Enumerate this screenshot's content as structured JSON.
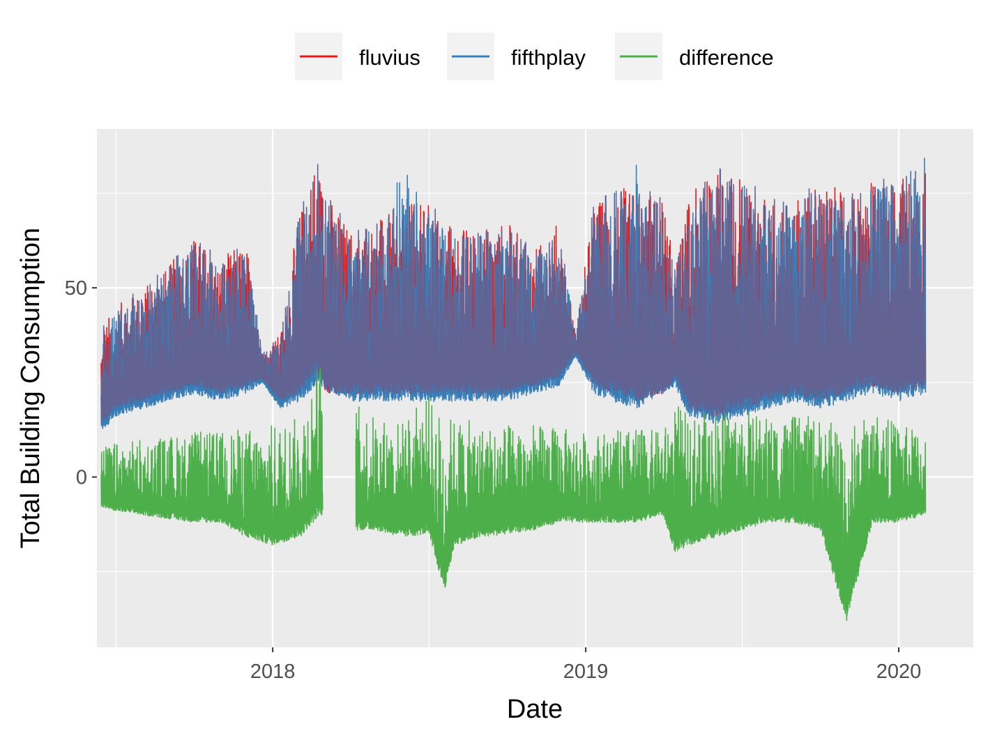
{
  "chart_data": {
    "type": "line",
    "xlabel": "Date",
    "ylabel": "Total Building Consumption",
    "x_tick_labels": [
      "2018",
      "2019",
      "2020"
    ],
    "x_ticks": [
      "2018-01-01",
      "2019-01-01",
      "2020-01-01"
    ],
    "y_tick_labels": [
      "0",
      "50"
    ],
    "y_ticks": [
      0,
      50
    ],
    "xlim": [
      "2017-06-10",
      "2020-03-28"
    ],
    "ylim": [
      -45,
      92
    ],
    "grid": true,
    "legend_position": "top",
    "colors": {
      "fluvius": "#e41a1c",
      "fifthplay": "#377eb8",
      "difference": "#4daf4a",
      "overlap": "#626393",
      "panel": "#ebebeb",
      "grid": "#ffffff"
    },
    "series": [
      {
        "name": "fluvius",
        "color": "#e41a1c",
        "x": [
          "2017-06-15",
          "2017-07-01",
          "2017-08-01",
          "2017-09-01",
          "2017-10-01",
          "2017-11-01",
          "2017-12-01",
          "2017-12-20",
          "2018-01-10",
          "2018-02-01",
          "2018-02-20",
          "2018-03-05",
          "2018-03-20",
          "2018-04-05",
          "2018-05-01",
          "2018-06-01",
          "2018-07-01",
          "2018-08-01",
          "2018-09-01",
          "2018-10-01",
          "2018-11-01",
          "2018-12-01",
          "2018-12-20",
          "2019-01-10",
          "2019-02-01",
          "2019-03-01",
          "2019-04-01",
          "2019-04-15",
          "2019-05-01",
          "2019-06-01",
          "2019-07-01",
          "2019-08-01",
          "2019-09-01",
          "2019-10-01",
          "2019-11-01",
          "2019-12-01",
          "2020-01-01",
          "2020-02-01"
        ],
        "high": [
          40,
          45,
          50,
          56,
          64,
          58,
          63,
          33,
          38,
          70,
          86,
          76,
          70,
          66,
          68,
          72,
          73,
          67,
          66,
          68,
          60,
          68,
          38,
          72,
          77,
          76,
          75,
          55,
          74,
          82,
          80,
          74,
          72,
          80,
          74,
          78,
          80,
          82
        ],
        "low": [
          14,
          18,
          20,
          22,
          24,
          22,
          24,
          26,
          20,
          22,
          28,
          22,
          22,
          22,
          22,
          22,
          22,
          22,
          22,
          22,
          24,
          26,
          33,
          24,
          22,
          20,
          22,
          26,
          18,
          16,
          18,
          20,
          22,
          20,
          22,
          24,
          22,
          24
        ]
      },
      {
        "name": "fifthplay",
        "color": "#377eb8",
        "x": [
          "2017-06-15",
          "2017-07-01",
          "2017-08-01",
          "2017-09-01",
          "2017-10-01",
          "2017-11-01",
          "2017-12-01",
          "2017-12-20",
          "2018-01-10",
          "2018-02-01",
          "2018-02-20",
          "2018-04-05",
          "2018-05-01",
          "2018-06-01",
          "2018-07-01",
          "2018-08-01",
          "2018-09-01",
          "2018-10-01",
          "2018-11-01",
          "2018-12-01",
          "2018-12-20",
          "2019-01-10",
          "2019-02-01",
          "2019-03-01",
          "2019-04-15",
          "2019-05-01",
          "2019-06-01",
          "2019-07-01",
          "2019-08-01",
          "2019-09-01",
          "2019-10-01",
          "2019-11-01",
          "2019-12-01",
          "2020-01-01",
          "2020-02-01"
        ],
        "high": [
          38,
          43,
          48,
          54,
          62,
          56,
          60,
          32,
          36,
          68,
          72,
          64,
          66,
          84,
          70,
          64,
          64,
          66,
          58,
          66,
          37,
          70,
          75,
          84,
          53,
          72,
          80,
          78,
          72,
          70,
          78,
          72,
          76,
          78,
          86
        ],
        "low": [
          12,
          16,
          18,
          20,
          22,
          20,
          22,
          25,
          18,
          20,
          24,
          20,
          20,
          20,
          20,
          20,
          20,
          20,
          22,
          24,
          32,
          22,
          20,
          18,
          24,
          16,
          14,
          16,
          18,
          20,
          18,
          20,
          22,
          20,
          22
        ]
      },
      {
        "name": "difference",
        "color": "#4daf4a",
        "x": [
          "2017-06-15",
          "2017-07-01",
          "2017-08-01",
          "2017-09-01",
          "2017-10-01",
          "2017-11-01",
          "2017-12-01",
          "2018-01-01",
          "2018-02-01",
          "2018-02-25",
          "2018-04-05",
          "2018-05-01",
          "2018-06-01",
          "2018-07-01",
          "2018-07-20",
          "2018-08-01",
          "2018-09-01",
          "2018-10-01",
          "2018-11-01",
          "2018-12-01",
          "2019-01-01",
          "2019-02-01",
          "2019-03-01",
          "2019-04-01",
          "2019-04-15",
          "2019-05-01",
          "2019-06-01",
          "2019-07-01",
          "2019-08-01",
          "2019-09-01",
          "2019-10-01",
          "2019-11-01",
          "2019-12-01",
          "2020-01-01",
          "2020-02-01"
        ],
        "high": [
          8,
          9,
          10,
          11,
          12,
          12,
          13,
          14,
          16,
          32,
          20,
          16,
          15,
          22,
          16,
          16,
          14,
          14,
          14,
          13,
          12,
          12,
          13,
          12,
          20,
          16,
          18,
          18,
          16,
          16,
          16,
          13,
          18,
          14,
          12
        ],
        "low": [
          -8,
          -9,
          -10,
          -11,
          -12,
          -12,
          -16,
          -18,
          -16,
          -10,
          -14,
          -14,
          -16,
          -15,
          -30,
          -18,
          -16,
          -15,
          -14,
          -12,
          -12,
          -12,
          -12,
          -10,
          -20,
          -18,
          -16,
          -14,
          -12,
          -12,
          -14,
          -38,
          -12,
          -12,
          -10
        ]
      }
    ]
  }
}
